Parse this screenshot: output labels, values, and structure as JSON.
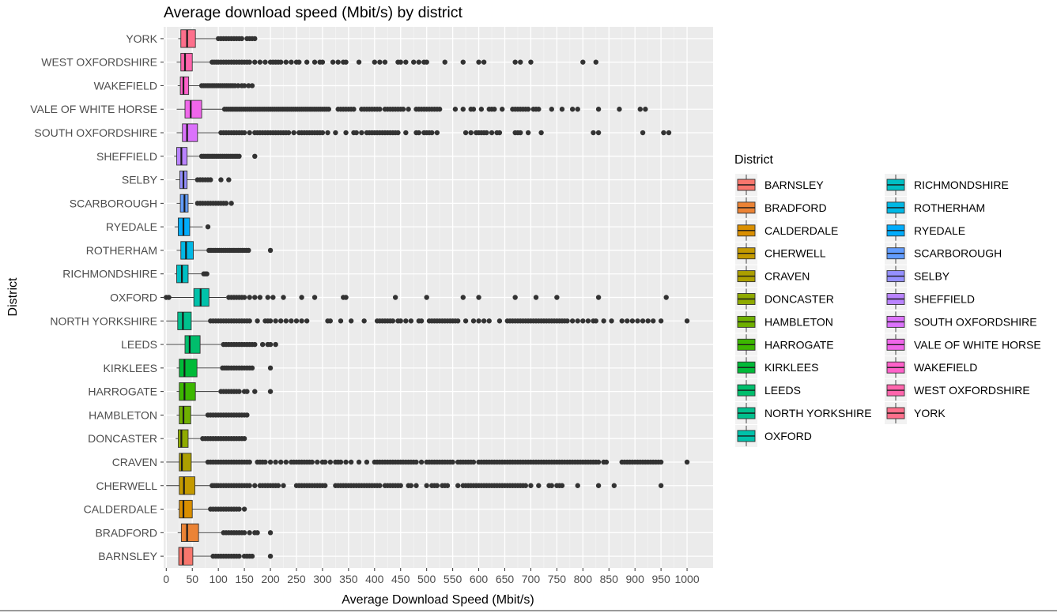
{
  "chart_data": {
    "type": "boxplot",
    "orientation": "horizontal",
    "title": "Average download speed (Mbit/s) by district",
    "xlabel": "Average Download Speed (Mbit/s)",
    "ylabel": "District",
    "xlim": [
      -5,
      1050
    ],
    "xticks": [
      0,
      50,
      100,
      150,
      200,
      250,
      300,
      350,
      400,
      450,
      500,
      550,
      600,
      650,
      700,
      750,
      800,
      850,
      900,
      950,
      1000
    ],
    "legend": {
      "title": "District",
      "position": "right",
      "columns": 2
    },
    "series": [
      {
        "district": "BARNSLEY",
        "color": "#F8766D",
        "min": 24,
        "q1": 24,
        "median": 32,
        "q3": 51,
        "max": 88,
        "outliers": [
          90,
          95,
          100,
          105,
          110,
          115,
          120,
          125,
          130,
          135,
          140,
          150,
          155,
          160,
          165,
          200
        ]
      },
      {
        "district": "BRADFORD",
        "color": "#EB8335",
        "min": 22,
        "q1": 29,
        "median": 40,
        "q3": 62,
        "max": 110,
        "outliers": [
          110,
          115,
          120,
          125,
          130,
          135,
          140,
          145,
          150,
          160,
          170,
          175,
          200
        ]
      },
      {
        "district": "CALDERDALE",
        "color": "#DA8F00",
        "min": 22,
        "q1": 25,
        "median": 33,
        "q3": 50,
        "max": 85,
        "outliers": [
          85,
          90,
          95,
          100,
          105,
          110,
          115,
          120,
          125,
          130,
          135,
          140,
          150
        ]
      },
      {
        "district": "CHERWELL",
        "color": "#C49A00",
        "min": 0,
        "q1": 25,
        "median": 34,
        "q3": 55,
        "max": 85,
        "outliers": [
          88,
          92,
          96,
          100,
          105,
          110,
          115,
          120,
          125,
          130,
          135,
          140,
          145,
          150,
          155,
          160,
          170,
          180,
          185,
          190,
          195,
          200,
          205,
          210,
          215,
          225,
          250,
          255,
          260,
          265,
          270,
          275,
          280,
          285,
          290,
          295,
          300,
          305,
          325,
          330,
          335,
          340,
          345,
          350,
          355,
          360,
          365,
          370,
          375,
          380,
          385,
          390,
          395,
          400,
          405,
          410,
          420,
          425,
          430,
          435,
          440,
          445,
          450,
          465,
          470,
          480,
          500,
          510,
          515,
          520,
          530,
          535,
          540,
          560,
          570,
          575,
          580,
          585,
          590,
          595,
          600,
          605,
          610,
          615,
          620,
          625,
          630,
          635,
          640,
          645,
          650,
          655,
          660,
          665,
          670,
          675,
          680,
          685,
          690,
          700,
          715,
          735,
          740,
          750,
          755,
          760,
          790,
          830,
          860,
          950
        ]
      },
      {
        "district": "CRAVEN",
        "color": "#AC9F00",
        "min": 0,
        "q1": 25,
        "median": 30,
        "q3": 48,
        "max": 80,
        "outliers": [
          80,
          85,
          90,
          95,
          100,
          105,
          110,
          115,
          120,
          125,
          130,
          135,
          140,
          145,
          150,
          155,
          160,
          175,
          180,
          185,
          190,
          200,
          210,
          220,
          230,
          240,
          245,
          250,
          255,
          260,
          265,
          270,
          275,
          280,
          290,
          300,
          305,
          315,
          325,
          330,
          335,
          345,
          355,
          370,
          385,
          400,
          405,
          410,
          415,
          420,
          425,
          430,
          435,
          440,
          445,
          450,
          455,
          460,
          465,
          470,
          475,
          480,
          490,
          500,
          505,
          510,
          515,
          520,
          525,
          530,
          535,
          540,
          545,
          550,
          560,
          565,
          570,
          575,
          580,
          585,
          590,
          600,
          605,
          610,
          615,
          620,
          625,
          630,
          635,
          640,
          645,
          650,
          655,
          660,
          665,
          670,
          675,
          680,
          685,
          690,
          695,
          700,
          705,
          710,
          715,
          720,
          725,
          730,
          735,
          740,
          745,
          750,
          755,
          760,
          765,
          770,
          775,
          780,
          785,
          790,
          795,
          800,
          805,
          810,
          815,
          820,
          825,
          830,
          840,
          845,
          875,
          880,
          885,
          890,
          895,
          900,
          905,
          910,
          915,
          920,
          925,
          930,
          935,
          940,
          945,
          950,
          1000
        ]
      },
      {
        "district": "DONCASTER",
        "color": "#8FAA00",
        "min": 18,
        "q1": 23,
        "median": 29,
        "q3": 42,
        "max": 70,
        "outliers": [
          70,
          75,
          80,
          85,
          90,
          95,
          100,
          105,
          110,
          115,
          120,
          125,
          130,
          135,
          140,
          145,
          150
        ]
      },
      {
        "district": "HAMBLETON",
        "color": "#6FB000",
        "min": 20,
        "q1": 25,
        "median": 33,
        "q3": 47,
        "max": 78,
        "outliers": [
          80,
          85,
          90,
          95,
          100,
          105,
          110,
          115,
          120,
          125,
          130,
          135,
          140,
          145,
          150,
          155
        ]
      },
      {
        "district": "HARROGATE",
        "color": "#3CB700",
        "min": 20,
        "q1": 25,
        "median": 35,
        "q3": 56,
        "max": 100,
        "outliers": [
          105,
          110,
          115,
          120,
          125,
          130,
          135,
          140,
          150,
          155,
          170,
          200
        ]
      },
      {
        "district": "KIRKLEES",
        "color": "#00BA38",
        "min": 20,
        "q1": 25,
        "median": 35,
        "q3": 59,
        "max": 105,
        "outliers": [
          108,
          112,
          116,
          120,
          125,
          130,
          135,
          140,
          145,
          150,
          155,
          160,
          165,
          200
        ]
      },
      {
        "district": "LEEDS",
        "color": "#00BE6C",
        "min": 0,
        "q1": 36,
        "median": 45,
        "q3": 65,
        "max": 110,
        "outliers": [
          110,
          115,
          120,
          125,
          130,
          135,
          140,
          145,
          150,
          155,
          160,
          165,
          170,
          185,
          195,
          200,
          210
        ]
      },
      {
        "district": "NORTH YORKSHIRE",
        "color": "#00C08D",
        "min": 0,
        "q1": 22,
        "median": 32,
        "q3": 48,
        "max": 82,
        "outliers": [
          85,
          90,
          95,
          100,
          105,
          110,
          115,
          120,
          125,
          130,
          135,
          140,
          145,
          150,
          155,
          160,
          175,
          190,
          195,
          200,
          210,
          220,
          230,
          240,
          250,
          260,
          270,
          310,
          315,
          335,
          355,
          380,
          405,
          410,
          415,
          420,
          425,
          430,
          435,
          445,
          450,
          460,
          470,
          485,
          490,
          505,
          510,
          515,
          520,
          525,
          530,
          535,
          540,
          545,
          550,
          555,
          560,
          575,
          590,
          600,
          610,
          620,
          640,
          655,
          660,
          665,
          670,
          675,
          680,
          685,
          690,
          695,
          700,
          705,
          710,
          715,
          720,
          725,
          730,
          735,
          740,
          745,
          750,
          755,
          760,
          765,
          770,
          780,
          790,
          800,
          810,
          820,
          825,
          840,
          855,
          875,
          885,
          895,
          905,
          915,
          925,
          935,
          950,
          1000
        ]
      },
      {
        "district": "OXFORD",
        "color": "#00C1AA",
        "min": 0,
        "q1": 53,
        "median": 66,
        "q3": 82,
        "max": 115,
        "outliers": [
          0,
          5,
          120,
          125,
          130,
          135,
          140,
          145,
          150,
          160,
          170,
          180,
          195,
          205,
          225,
          260,
          285,
          340,
          345,
          440,
          500,
          570,
          600,
          670,
          710,
          750,
          830,
          960
        ]
      },
      {
        "district": "RICHMONDSHIRE",
        "color": "#00BFC4",
        "min": 16,
        "q1": 20,
        "median": 30,
        "q3": 42,
        "max": 70,
        "outliers": [
          72,
          75,
          78
        ]
      },
      {
        "district": "ROTHERHAM",
        "color": "#00B8E5",
        "min": 20,
        "q1": 28,
        "median": 38,
        "q3": 52,
        "max": 80,
        "outliers": [
          82,
          86,
          90,
          94,
          98,
          102,
          106,
          110,
          114,
          118,
          122,
          126,
          130,
          134,
          138,
          142,
          146,
          150,
          154,
          158,
          200
        ]
      },
      {
        "district": "RYEDALE",
        "color": "#00ACFC",
        "min": 16,
        "q1": 23,
        "median": 33,
        "q3": 45,
        "max": 70,
        "outliers": [
          80
        ]
      },
      {
        "district": "SCARBOROUGH",
        "color": "#619CFF",
        "min": 20,
        "q1": 27,
        "median": 35,
        "q3": 42,
        "max": 52,
        "outliers": [
          60,
          65,
          70,
          75,
          80,
          85,
          90,
          95,
          100,
          105,
          110,
          115,
          125
        ]
      },
      {
        "district": "SELBY",
        "color": "#9590FF",
        "min": 18,
        "q1": 26,
        "median": 33,
        "q3": 40,
        "max": 55,
        "outliers": [
          60,
          65,
          70,
          75,
          80,
          85,
          105,
          120
        ]
      },
      {
        "district": "SHEFFIELD",
        "color": "#B983FF",
        "min": 15,
        "q1": 20,
        "median": 29,
        "q3": 40,
        "max": 65,
        "outliers": [
          68,
          72,
          76,
          80,
          84,
          88,
          92,
          96,
          100,
          104,
          108,
          112,
          116,
          120,
          124,
          128,
          132,
          136,
          140,
          170
        ]
      },
      {
        "district": "SOUTH OXFORDSHIRE",
        "color": "#DB72FB",
        "min": 20,
        "q1": 31,
        "median": 40,
        "q3": 60,
        "max": 105,
        "outliers": [
          105,
          110,
          115,
          120,
          125,
          130,
          135,
          140,
          145,
          150,
          160,
          170,
          175,
          180,
          185,
          190,
          195,
          200,
          205,
          210,
          215,
          220,
          225,
          230,
          235,
          245,
          255,
          260,
          265,
          270,
          275,
          280,
          285,
          290,
          295,
          300,
          310,
          325,
          345,
          360,
          365,
          375,
          385,
          390,
          395,
          400,
          405,
          410,
          415,
          420,
          425,
          430,
          435,
          440,
          445,
          460,
          480,
          485,
          495,
          500,
          505,
          510,
          520,
          575,
          585,
          595,
          600,
          605,
          610,
          615,
          625,
          635,
          640,
          670,
          675,
          680,
          695,
          720,
          820,
          830,
          915,
          955,
          965
        ]
      },
      {
        "district": "VALE OF WHITE HORSE",
        "color": "#F066EA",
        "min": 20,
        "q1": 36,
        "median": 47,
        "q3": 68,
        "max": 110,
        "outliers": [
          112,
          116,
          120,
          124,
          128,
          132,
          136,
          140,
          144,
          148,
          152,
          156,
          160,
          164,
          168,
          172,
          176,
          180,
          184,
          188,
          192,
          196,
          200,
          204,
          208,
          212,
          216,
          220,
          224,
          228,
          232,
          236,
          240,
          244,
          248,
          252,
          256,
          260,
          264,
          268,
          272,
          276,
          280,
          284,
          288,
          292,
          296,
          300,
          304,
          308,
          312,
          330,
          335,
          340,
          345,
          350,
          355,
          360,
          375,
          380,
          385,
          390,
          395,
          400,
          405,
          410,
          420,
          425,
          430,
          435,
          440,
          445,
          450,
          455,
          465,
          480,
          485,
          490,
          495,
          500,
          505,
          510,
          515,
          520,
          525,
          555,
          570,
          585,
          590,
          605,
          620,
          625,
          630,
          645,
          665,
          670,
          675,
          680,
          685,
          690,
          695,
          705,
          710,
          715,
          740,
          760,
          780,
          790,
          830,
          870,
          910,
          920
        ]
      },
      {
        "district": "WAKEFIELD",
        "color": "#FF61C9",
        "min": 22,
        "q1": 27,
        "median": 33,
        "q3": 43,
        "max": 65,
        "outliers": [
          68,
          72,
          76,
          80,
          84,
          88,
          92,
          96,
          100,
          104,
          108,
          112,
          116,
          120,
          124,
          128,
          132,
          138,
          145,
          150,
          158,
          165
        ]
      },
      {
        "district": "WEST OXFORDSHIRE",
        "color": "#FF65AC",
        "min": 20,
        "q1": 28,
        "median": 36,
        "q3": 50,
        "max": 85,
        "outliers": [
          88,
          92,
          96,
          100,
          105,
          110,
          115,
          120,
          125,
          130,
          135,
          140,
          145,
          150,
          155,
          160,
          170,
          180,
          190,
          200,
          205,
          210,
          215,
          220,
          230,
          240,
          250,
          255,
          270,
          285,
          295,
          300,
          320,
          330,
          340,
          345,
          370,
          400,
          410,
          420,
          445,
          450,
          460,
          475,
          485,
          495,
          500,
          535,
          570,
          600,
          610,
          670,
          680,
          700,
          800,
          825
        ]
      },
      {
        "district": "YORK",
        "color": "#FD6F8B",
        "min": 23,
        "q1": 28,
        "median": 40,
        "q3": 56,
        "max": 100,
        "outliers": [
          100,
          105,
          110,
          115,
          120,
          125,
          130,
          135,
          140,
          145,
          155,
          160,
          165,
          170
        ]
      }
    ]
  }
}
